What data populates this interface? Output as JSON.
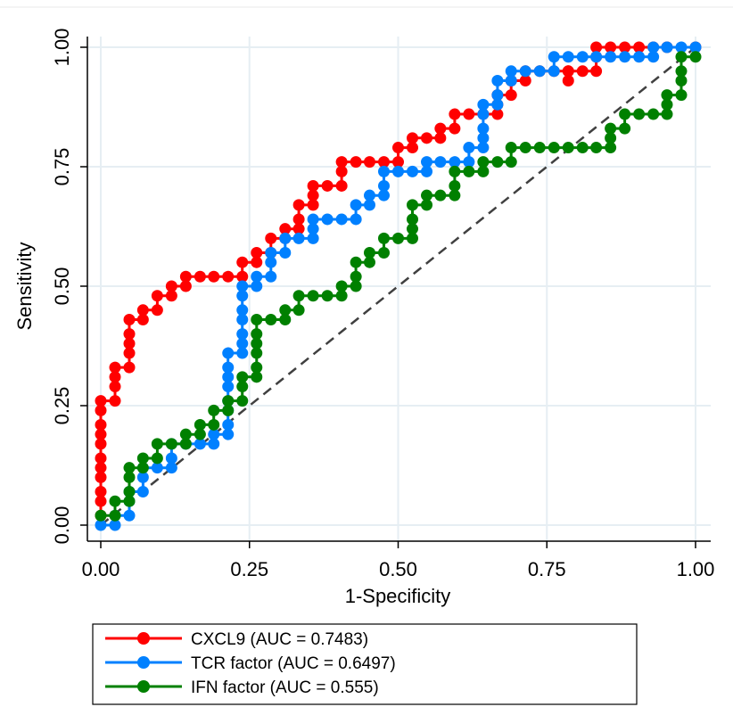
{
  "chart_data": {
    "type": "line",
    "xlabel": "1-Specificity",
    "ylabel": "Sensitivity",
    "xlim": [
      0,
      1
    ],
    "ylim": [
      0,
      1
    ],
    "x_ticks": [
      "0.00",
      "0.25",
      "0.50",
      "0.75",
      "1.00"
    ],
    "y_ticks": [
      "0.00",
      "0.25",
      "0.50",
      "0.75",
      "1.00"
    ],
    "grid": "horizontal and vertical, light",
    "legend_placement": "bottom",
    "reference_line": {
      "style": "dashed",
      "color": "#404040",
      "from": [
        0,
        0
      ],
      "to": [
        1,
        1
      ]
    },
    "series": [
      {
        "name": "CXCL9 (AUC = 0.7483)",
        "color": "#ff0000",
        "points": [
          [
            0,
            0.02
          ],
          [
            0,
            0.05
          ],
          [
            0,
            0.07
          ],
          [
            0,
            0.1
          ],
          [
            0,
            0.12
          ],
          [
            0,
            0.14
          ],
          [
            0,
            0.17
          ],
          [
            0,
            0.19
          ],
          [
            0,
            0.21
          ],
          [
            0,
            0.24
          ],
          [
            0,
            0.26
          ],
          [
            0.024,
            0.26
          ],
          [
            0.024,
            0.29
          ],
          [
            0.024,
            0.31
          ],
          [
            0.024,
            0.33
          ],
          [
            0.048,
            0.33
          ],
          [
            0.048,
            0.36
          ],
          [
            0.048,
            0.38
          ],
          [
            0.048,
            0.4
          ],
          [
            0.048,
            0.43
          ],
          [
            0.071,
            0.43
          ],
          [
            0.071,
            0.45
          ],
          [
            0.095,
            0.45
          ],
          [
            0.095,
            0.48
          ],
          [
            0.119,
            0.48
          ],
          [
            0.119,
            0.5
          ],
          [
            0.143,
            0.5
          ],
          [
            0.143,
            0.52
          ],
          [
            0.167,
            0.52
          ],
          [
            0.19,
            0.52
          ],
          [
            0.214,
            0.52
          ],
          [
            0.238,
            0.52
          ],
          [
            0.238,
            0.55
          ],
          [
            0.262,
            0.55
          ],
          [
            0.262,
            0.57
          ],
          [
            0.286,
            0.57
          ],
          [
            0.286,
            0.6
          ],
          [
            0.31,
            0.6
          ],
          [
            0.31,
            0.62
          ],
          [
            0.333,
            0.62
          ],
          [
            0.333,
            0.64
          ],
          [
            0.333,
            0.67
          ],
          [
            0.357,
            0.67
          ],
          [
            0.357,
            0.69
          ],
          [
            0.357,
            0.71
          ],
          [
            0.381,
            0.71
          ],
          [
            0.405,
            0.71
          ],
          [
            0.405,
            0.74
          ],
          [
            0.405,
            0.76
          ],
          [
            0.429,
            0.76
          ],
          [
            0.452,
            0.76
          ],
          [
            0.476,
            0.76
          ],
          [
            0.5,
            0.76
          ],
          [
            0.5,
            0.79
          ],
          [
            0.524,
            0.79
          ],
          [
            0.524,
            0.81
          ],
          [
            0.548,
            0.81
          ],
          [
            0.571,
            0.81
          ],
          [
            0.571,
            0.83
          ],
          [
            0.595,
            0.83
          ],
          [
            0.595,
            0.86
          ],
          [
            0.619,
            0.86
          ],
          [
            0.643,
            0.86
          ],
          [
            0.667,
            0.86
          ],
          [
            0.667,
            0.88
          ],
          [
            0.667,
            0.9
          ],
          [
            0.69,
            0.9
          ],
          [
            0.69,
            0.93
          ],
          [
            0.714,
            0.93
          ],
          [
            0.714,
            0.95
          ],
          [
            0.738,
            0.95
          ],
          [
            0.762,
            0.95
          ],
          [
            0.786,
            0.95
          ],
          [
            0.786,
            0.93
          ],
          [
            0.786,
            0.95
          ],
          [
            0.81,
            0.95
          ],
          [
            0.833,
            0.95
          ],
          [
            0.833,
            0.98
          ],
          [
            0.833,
            1
          ],
          [
            0.857,
            1
          ],
          [
            0.881,
            1
          ],
          [
            0.905,
            1
          ],
          [
            0.929,
            1
          ],
          [
            0.952,
            1
          ],
          [
            1,
            1
          ]
        ]
      },
      {
        "name": "TCR factor (AUC = 0.6497)",
        "color": "#0080ff",
        "points": [
          [
            0,
            0
          ],
          [
            0.024,
            0
          ],
          [
            0.024,
            0.02
          ],
          [
            0.048,
            0.02
          ],
          [
            0.048,
            0.05
          ],
          [
            0.048,
            0.07
          ],
          [
            0.071,
            0.07
          ],
          [
            0.071,
            0.1
          ],
          [
            0.071,
            0.12
          ],
          [
            0.095,
            0.12
          ],
          [
            0.119,
            0.12
          ],
          [
            0.119,
            0.14
          ],
          [
            0.119,
            0.17
          ],
          [
            0.143,
            0.17
          ],
          [
            0.167,
            0.17
          ],
          [
            0.19,
            0.17
          ],
          [
            0.19,
            0.19
          ],
          [
            0.214,
            0.19
          ],
          [
            0.214,
            0.21
          ],
          [
            0.214,
            0.24
          ],
          [
            0.214,
            0.26
          ],
          [
            0.214,
            0.29
          ],
          [
            0.214,
            0.31
          ],
          [
            0.214,
            0.33
          ],
          [
            0.214,
            0.36
          ],
          [
            0.238,
            0.36
          ],
          [
            0.238,
            0.38
          ],
          [
            0.238,
            0.4
          ],
          [
            0.238,
            0.43
          ],
          [
            0.238,
            0.45
          ],
          [
            0.238,
            0.48
          ],
          [
            0.238,
            0.5
          ],
          [
            0.262,
            0.5
          ],
          [
            0.262,
            0.52
          ],
          [
            0.286,
            0.52
          ],
          [
            0.286,
            0.55
          ],
          [
            0.286,
            0.57
          ],
          [
            0.31,
            0.57
          ],
          [
            0.31,
            0.6
          ],
          [
            0.333,
            0.6
          ],
          [
            0.357,
            0.6
          ],
          [
            0.357,
            0.62
          ],
          [
            0.357,
            0.64
          ],
          [
            0.381,
            0.64
          ],
          [
            0.405,
            0.64
          ],
          [
            0.429,
            0.64
          ],
          [
            0.429,
            0.67
          ],
          [
            0.452,
            0.67
          ],
          [
            0.452,
            0.69
          ],
          [
            0.476,
            0.69
          ],
          [
            0.476,
            0.71
          ],
          [
            0.476,
            0.74
          ],
          [
            0.5,
            0.74
          ],
          [
            0.524,
            0.74
          ],
          [
            0.548,
            0.74
          ],
          [
            0.548,
            0.76
          ],
          [
            0.571,
            0.76
          ],
          [
            0.595,
            0.76
          ],
          [
            0.619,
            0.76
          ],
          [
            0.619,
            0.79
          ],
          [
            0.643,
            0.79
          ],
          [
            0.643,
            0.81
          ],
          [
            0.643,
            0.83
          ],
          [
            0.643,
            0.86
          ],
          [
            0.643,
            0.88
          ],
          [
            0.667,
            0.88
          ],
          [
            0.667,
            0.9
          ],
          [
            0.667,
            0.93
          ],
          [
            0.69,
            0.93
          ],
          [
            0.69,
            0.95
          ],
          [
            0.714,
            0.95
          ],
          [
            0.738,
            0.95
          ],
          [
            0.762,
            0.95
          ],
          [
            0.762,
            0.98
          ],
          [
            0.786,
            0.98
          ],
          [
            0.81,
            0.98
          ],
          [
            0.833,
            0.98
          ],
          [
            0.857,
            0.98
          ],
          [
            0.881,
            0.98
          ],
          [
            0.905,
            0.98
          ],
          [
            0.929,
            0.98
          ],
          [
            0.929,
            1
          ],
          [
            0.952,
            1
          ],
          [
            0.976,
            1
          ],
          [
            1,
            1
          ]
        ]
      },
      {
        "name": "IFN factor (AUC = 0.555)",
        "color": "#008000",
        "points": [
          [
            0,
            0.02
          ],
          [
            0.024,
            0.02
          ],
          [
            0.024,
            0.05
          ],
          [
            0.048,
            0.05
          ],
          [
            0.048,
            0.07
          ],
          [
            0.048,
            0.1
          ],
          [
            0.048,
            0.12
          ],
          [
            0.071,
            0.12
          ],
          [
            0.071,
            0.14
          ],
          [
            0.095,
            0.14
          ],
          [
            0.095,
            0.17
          ],
          [
            0.119,
            0.17
          ],
          [
            0.143,
            0.17
          ],
          [
            0.143,
            0.19
          ],
          [
            0.167,
            0.19
          ],
          [
            0.167,
            0.21
          ],
          [
            0.19,
            0.21
          ],
          [
            0.19,
            0.24
          ],
          [
            0.214,
            0.24
          ],
          [
            0.214,
            0.26
          ],
          [
            0.238,
            0.26
          ],
          [
            0.238,
            0.29
          ],
          [
            0.238,
            0.31
          ],
          [
            0.262,
            0.31
          ],
          [
            0.262,
            0.33
          ],
          [
            0.262,
            0.36
          ],
          [
            0.262,
            0.38
          ],
          [
            0.262,
            0.4
          ],
          [
            0.262,
            0.43
          ],
          [
            0.286,
            0.43
          ],
          [
            0.31,
            0.43
          ],
          [
            0.31,
            0.45
          ],
          [
            0.333,
            0.45
          ],
          [
            0.333,
            0.48
          ],
          [
            0.357,
            0.48
          ],
          [
            0.381,
            0.48
          ],
          [
            0.405,
            0.48
          ],
          [
            0.405,
            0.5
          ],
          [
            0.429,
            0.5
          ],
          [
            0.429,
            0.52
          ],
          [
            0.429,
            0.55
          ],
          [
            0.452,
            0.55
          ],
          [
            0.452,
            0.57
          ],
          [
            0.476,
            0.57
          ],
          [
            0.476,
            0.6
          ],
          [
            0.5,
            0.6
          ],
          [
            0.524,
            0.6
          ],
          [
            0.524,
            0.62
          ],
          [
            0.524,
            0.64
          ],
          [
            0.524,
            0.67
          ],
          [
            0.548,
            0.67
          ],
          [
            0.548,
            0.69
          ],
          [
            0.571,
            0.69
          ],
          [
            0.595,
            0.69
          ],
          [
            0.595,
            0.71
          ],
          [
            0.595,
            0.74
          ],
          [
            0.619,
            0.74
          ],
          [
            0.643,
            0.74
          ],
          [
            0.643,
            0.76
          ],
          [
            0.667,
            0.76
          ],
          [
            0.69,
            0.76
          ],
          [
            0.69,
            0.79
          ],
          [
            0.714,
            0.79
          ],
          [
            0.738,
            0.79
          ],
          [
            0.762,
            0.79
          ],
          [
            0.786,
            0.79
          ],
          [
            0.81,
            0.79
          ],
          [
            0.833,
            0.79
          ],
          [
            0.857,
            0.79
          ],
          [
            0.857,
            0.81
          ],
          [
            0.857,
            0.83
          ],
          [
            0.881,
            0.83
          ],
          [
            0.881,
            0.86
          ],
          [
            0.905,
            0.86
          ],
          [
            0.929,
            0.86
          ],
          [
            0.952,
            0.86
          ],
          [
            0.952,
            0.88
          ],
          [
            0.952,
            0.9
          ],
          [
            0.976,
            0.9
          ],
          [
            0.976,
            0.93
          ],
          [
            0.976,
            0.95
          ],
          [
            0.976,
            0.98
          ],
          [
            1,
            0.98
          ]
        ]
      }
    ]
  }
}
